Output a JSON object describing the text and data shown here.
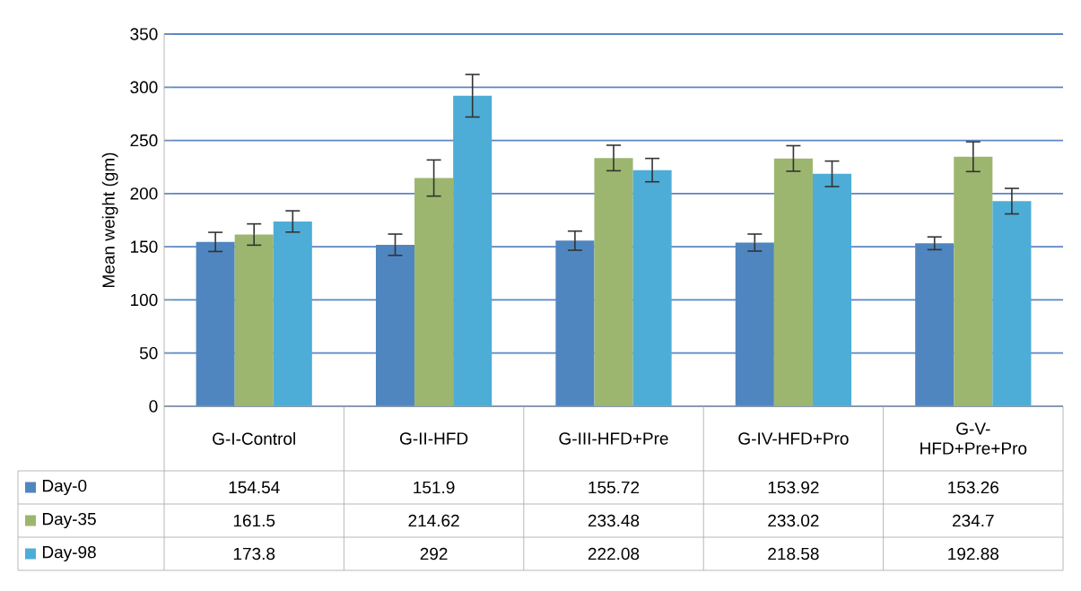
{
  "chart_data": {
    "type": "bar",
    "ylabel": "Mean weight (gm)",
    "categories": [
      "G-I-Control",
      "G-II-HFD",
      "G-III-HFD+Pre",
      "G-IV-HFD+Pro",
      "G-V-HFD+Pre+Pro"
    ],
    "series": [
      {
        "name": "Day-0",
        "color": "#4f86c0",
        "values": [
          154.54,
          151.9,
          155.72,
          153.92,
          153.26
        ],
        "errors": [
          9,
          10,
          9,
          8,
          6
        ]
      },
      {
        "name": "Day-35",
        "color": "#9cb66f",
        "values": [
          161.5,
          214.62,
          233.48,
          233.02,
          234.7
        ],
        "errors": [
          10,
          17,
          12,
          12,
          14
        ]
      },
      {
        "name": "Day-98",
        "color": "#4eadd6",
        "values": [
          173.8,
          292,
          222.08,
          218.58,
          192.88
        ],
        "errors": [
          10,
          20,
          11,
          12,
          12
        ]
      }
    ],
    "ylim": [
      0,
      350
    ],
    "yticks": [
      0,
      50,
      100,
      150,
      200,
      250,
      300,
      350
    ],
    "grid": "y",
    "data_labels": true,
    "legend": "bottom"
  }
}
